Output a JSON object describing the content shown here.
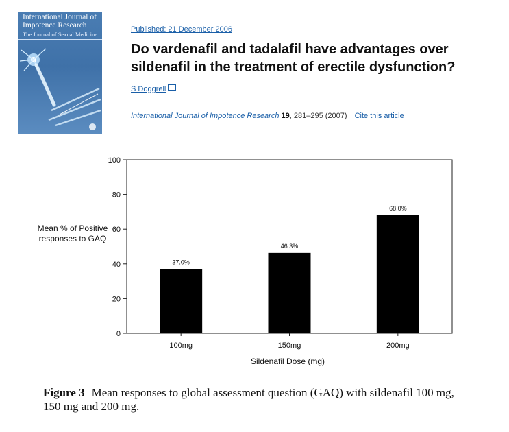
{
  "cover": {
    "title_line1": "International Journal of",
    "title_line2": "Impotence Research",
    "subtitle": "The Journal of Sexual Medicine",
    "colors": {
      "background": "#4a7db3",
      "accent": "#cfe0f5"
    }
  },
  "article": {
    "published": "Published: 21 December 2006",
    "title": "Do vardenafil and tadalafil have advantages over sildenafil in the treatment of erectile dysfunction?",
    "author": "S Doggrell",
    "author_icon": "mail-icon",
    "journal": "International Journal of Impotence Research",
    "volume": "19",
    "pages_year": ", 281–295 (2007)",
    "cite_label": "Cite this article",
    "link_color": "#1a5fa8"
  },
  "chart_data": {
    "type": "bar",
    "categories": [
      "100mg",
      "150mg",
      "200mg"
    ],
    "values": [
      37.0,
      46.3,
      68.0
    ],
    "value_labels": [
      "37.0%",
      "46.3%",
      "68.0%"
    ],
    "title": "",
    "xlabel": "Sildenafil Dose (mg)",
    "ylabel": "Mean % of Positive responses to GAQ",
    "ylim": [
      0,
      100
    ],
    "yticks": [
      0,
      20,
      40,
      60,
      80,
      100
    ],
    "ytick_labels": [
      "0",
      "20",
      "40",
      "60",
      "80",
      "100"
    ],
    "grid": false,
    "bar_color": "#000000"
  },
  "caption": {
    "label": "Figure 3",
    "text": "Mean responses to global assessment question (GAQ) with sildenafil 100 mg, 150 mg and 200 mg."
  }
}
